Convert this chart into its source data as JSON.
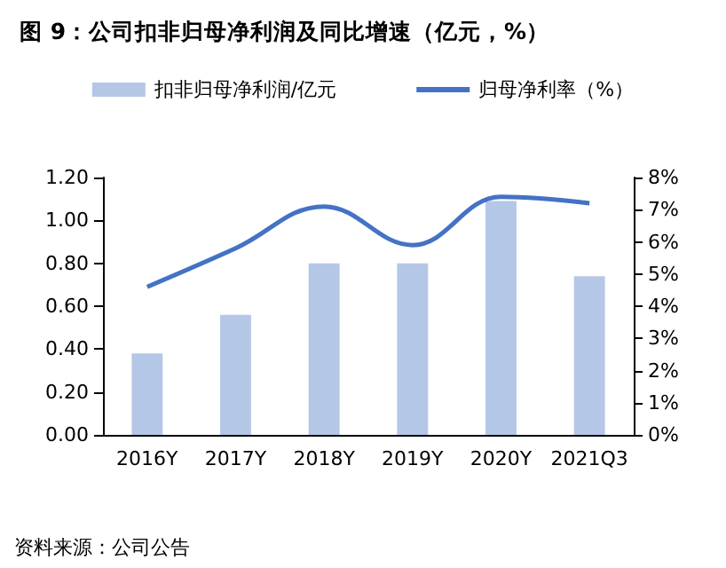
{
  "chart_data": {
    "type": "bar",
    "title": "图 9：公司扣非归母净利润及同比增速（亿元，%）",
    "categories": [
      "2016Y",
      "2017Y",
      "2018Y",
      "2019Y",
      "2020Y",
      "2021Q3"
    ],
    "series": [
      {
        "name": "扣非归母净利润/亿元",
        "color": "#b4c7e7",
        "values": [
          0.38,
          0.56,
          0.8,
          0.8,
          1.09,
          0.74
        ]
      },
      {
        "name": "归母净利率（%）",
        "type": "line",
        "axis": "y2",
        "color": "#4472c4",
        "values": [
          4.6,
          5.8,
          7.1,
          5.9,
          7.4,
          7.2
        ]
      }
    ],
    "ylim": [
      0,
      1.2
    ],
    "yticks": [
      {
        "value": 0,
        "label": "0.00"
      },
      {
        "value": 0.2,
        "label": "0.20"
      },
      {
        "value": 0.4,
        "label": "0.40"
      },
      {
        "value": 0.6,
        "label": "0.60"
      },
      {
        "value": 0.8,
        "label": "0.80"
      },
      {
        "value": 1,
        "label": "1.00"
      },
      {
        "value": 1.2,
        "label": "1.20"
      }
    ],
    "y2lim": [
      0,
      8
    ],
    "y2ticks": [
      {
        "value": 0,
        "label": "0%"
      },
      {
        "value": 1,
        "label": "1%"
      },
      {
        "value": 2,
        "label": "2%"
      },
      {
        "value": 3,
        "label": "3%"
      },
      {
        "value": 4,
        "label": "4%"
      },
      {
        "value": 5,
        "label": "5%"
      },
      {
        "value": 6,
        "label": "6%"
      },
      {
        "value": 7,
        "label": "7%"
      },
      {
        "value": 8,
        "label": "8%"
      }
    ],
    "grid": false,
    "legend": "top",
    "marker": "none",
    "annotations": [
      "资料来源：公司公告"
    ]
  }
}
